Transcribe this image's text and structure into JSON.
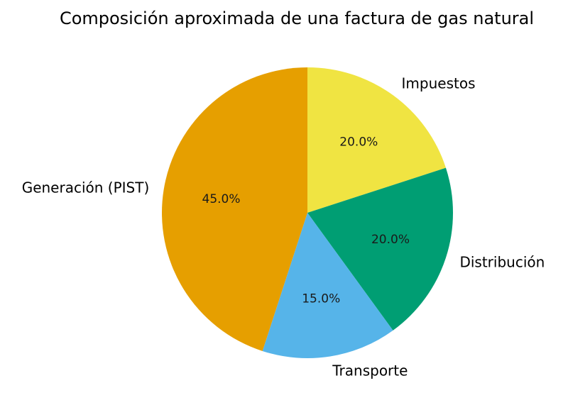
{
  "chart_data": {
    "type": "pie",
    "title": "Composición aproximada de una factura de gas natural",
    "slices": [
      {
        "label": "Impuestos",
        "value": 20.0,
        "pct_label": "20.0%",
        "color": "#F0E442"
      },
      {
        "label": "Distribución",
        "value": 20.0,
        "pct_label": "20.0%",
        "color": "#009E73"
      },
      {
        "label": "Transporte",
        "value": 15.0,
        "pct_label": "15.0%",
        "color": "#56B4E9"
      },
      {
        "label": "Generación (PIST)",
        "value": 45.0,
        "pct_label": "45.0%",
        "color": "#E69F00"
      }
    ],
    "start_angle": "12 o'clock",
    "direction": "clockwise",
    "legend": "none"
  }
}
